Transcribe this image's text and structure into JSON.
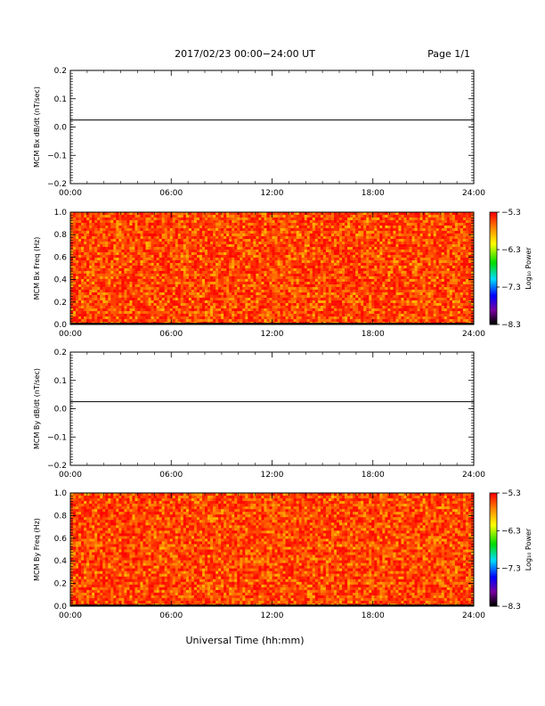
{
  "header": {
    "title": "2017/02/23  00:00−24:00 UT",
    "page": "Page 1/1"
  },
  "xaxis_title": "Universal Time (hh:mm)",
  "chart_data": [
    {
      "type": "line",
      "ylabel": "MCM Bx dB/dt (nT/sec)",
      "x_ticks": [
        "00:00",
        "06:00",
        "12:00",
        "18:00",
        "24:00"
      ],
      "y_ticks": [
        "0.2",
        "0.1",
        "0.0",
        "−0.1",
        "−0.2"
      ],
      "y_tick_values": [
        0.2,
        0.1,
        0.0,
        -0.1,
        -0.2
      ],
      "ylim": [
        -0.2,
        0.2
      ],
      "xlim_hours": [
        0,
        24
      ],
      "series": [
        {
          "x_hours": [
            0,
            24
          ],
          "values": [
            0.025,
            0.025
          ]
        }
      ]
    },
    {
      "type": "heatmap",
      "ylabel": "MCM Bx Freq (Hz)",
      "x_ticks": [
        "00:00",
        "06:00",
        "12:00",
        "18:00",
        "24:00"
      ],
      "y_ticks": [
        "1.0",
        "0.8",
        "0.6",
        "0.4",
        "0.2",
        "0.0"
      ],
      "y_tick_values": [
        1.0,
        0.8,
        0.6,
        0.4,
        0.2,
        0.0
      ],
      "ylim": [
        0,
        1.0
      ],
      "xlim_hours": [
        0,
        24
      ],
      "colorbar": {
        "label": "Log₁₀ Power",
        "ticks": [
          "−5.3",
          "−6.3",
          "−7.3",
          "−8.3"
        ],
        "range": [
          -8.3,
          -5.3
        ]
      },
      "value_distribution": {
        "min": -5.9,
        "max": -5.3
      }
    },
    {
      "type": "line",
      "ylabel": "MCM By dB/dt (nT/sec)",
      "x_ticks": [
        "00:00",
        "06:00",
        "12:00",
        "18:00",
        "24:00"
      ],
      "y_ticks": [
        "0.2",
        "0.1",
        "0.0",
        "−0.1",
        "−0.2"
      ],
      "y_tick_values": [
        0.2,
        0.1,
        0.0,
        -0.1,
        -0.2
      ],
      "ylim": [
        -0.2,
        0.2
      ],
      "xlim_hours": [
        0,
        24
      ],
      "series": [
        {
          "x_hours": [
            0,
            24
          ],
          "values": [
            0.025,
            0.025
          ]
        }
      ]
    },
    {
      "type": "heatmap",
      "ylabel": "MCM By Freq (Hz)",
      "x_ticks": [
        "00:00",
        "06:00",
        "12:00",
        "18:00",
        "24:00"
      ],
      "y_ticks": [
        "1.0",
        "0.8",
        "0.6",
        "0.4",
        "0.2",
        "0.0"
      ],
      "y_tick_values": [
        1.0,
        0.8,
        0.6,
        0.4,
        0.2,
        0.0
      ],
      "ylim": [
        0,
        1.0
      ],
      "xlim_hours": [
        0,
        24
      ],
      "colorbar": {
        "label": "Log₁₀ Power",
        "ticks": [
          "−5.3",
          "−6.3",
          "−7.3",
          "−8.3"
        ],
        "range": [
          -8.3,
          -5.3
        ]
      },
      "value_distribution": {
        "min": -5.9,
        "max": -5.3
      }
    }
  ]
}
